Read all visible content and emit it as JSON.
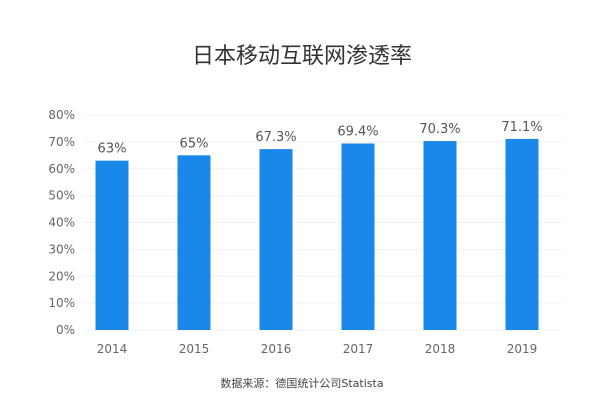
{
  "chart_data": {
    "type": "bar",
    "title": "日本移动互联网渗透率",
    "categories": [
      "2014",
      "2015",
      "2016",
      "2017",
      "2018",
      "2019"
    ],
    "values": [
      63,
      65,
      67.3,
      69.4,
      70.3,
      71.1
    ],
    "data_labels": [
      "63%",
      "65%",
      "67.3%",
      "69.4%",
      "70.3%",
      "71.1%"
    ],
    "y_ticks": [
      "0%",
      "10%",
      "20%",
      "30%",
      "40%",
      "50%",
      "60%",
      "70%",
      "80%"
    ],
    "ylim": [
      0,
      80
    ],
    "xlabel": "",
    "ylabel": "",
    "grid": true,
    "bar_color": "#1a88ea",
    "source": "数据来源：德国统计公司Statista"
  }
}
